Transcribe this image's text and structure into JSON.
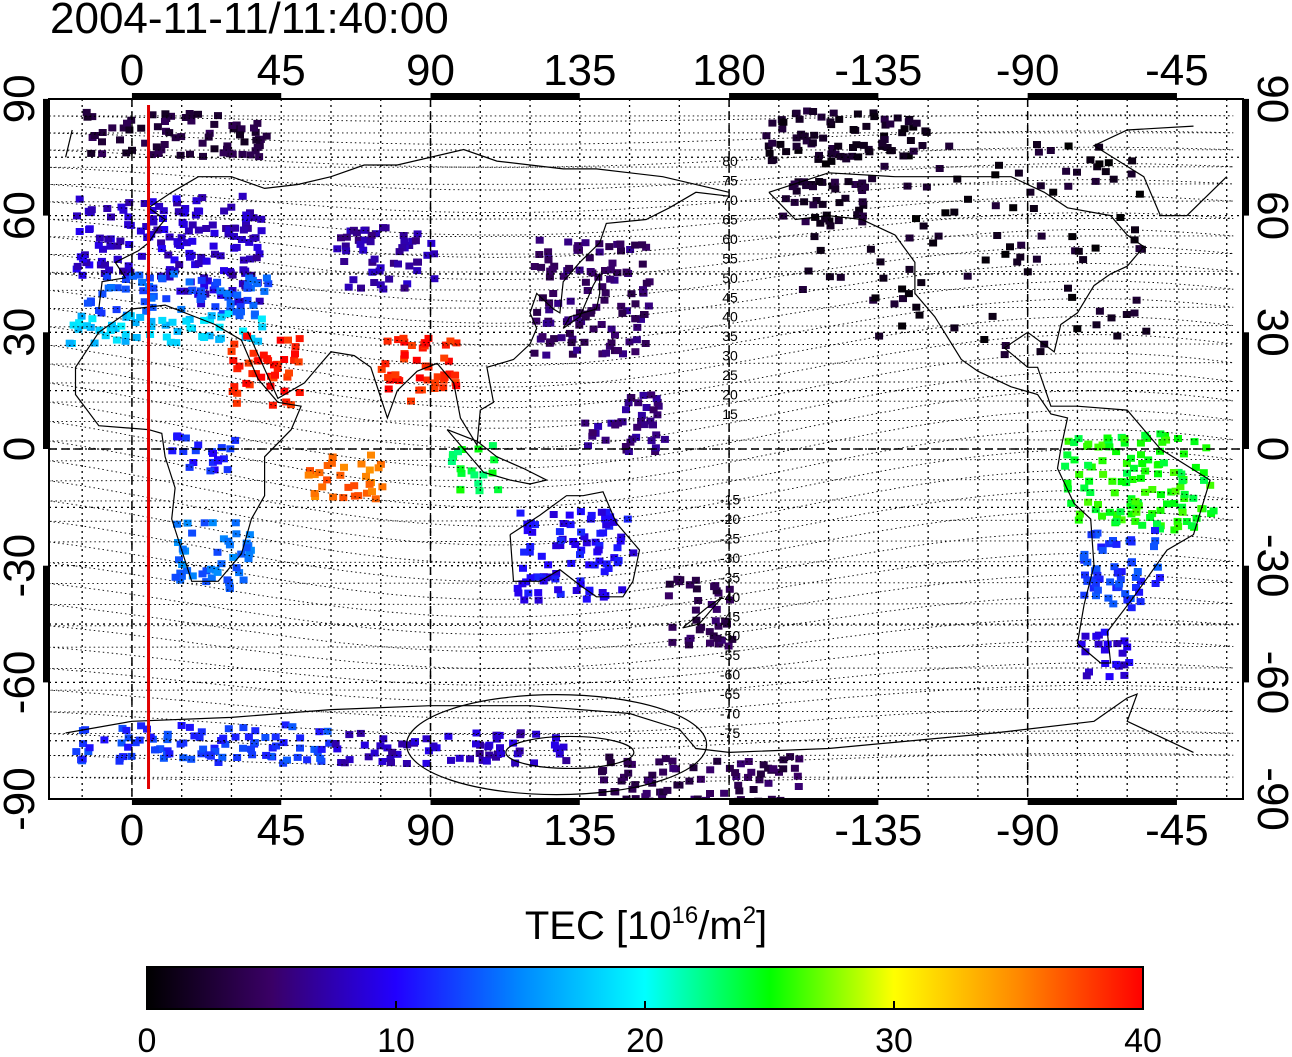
{
  "title": "2004-11-11/11:40:00",
  "map": {
    "top_lon_labels": [
      "0",
      "45",
      "90",
      "135",
      "180",
      "-135",
      "-90",
      "-45"
    ],
    "bottom_lon_labels": [
      "0",
      "45",
      "90",
      "135",
      "180",
      "-135",
      "-90",
      "-45"
    ],
    "lat_labels": [
      "90",
      "60",
      "30",
      "0",
      "-30",
      "-60",
      "-90"
    ],
    "marker_longitude": 5,
    "contour_labels_north": [
      "80",
      "75",
      "70",
      "65",
      "60",
      "55",
      "50",
      "45",
      "40",
      "35",
      "30",
      "25",
      "20",
      "15"
    ],
    "contour_labels_south": [
      "-15",
      "-20",
      "-25",
      "-30",
      "-35",
      "-40",
      "-45",
      "-50",
      "-55",
      "-60",
      "-65",
      "-70",
      "-75"
    ],
    "colors": {
      "marker": "#e00000",
      "grid": "#000000"
    }
  },
  "colorbar": {
    "title_main": "TEC  [10",
    "title_exp1": "16",
    "title_mid": "/m",
    "title_exp2": "2",
    "title_end": "]",
    "ticks": [
      "0",
      "10",
      "20",
      "30",
      "40"
    ],
    "min": 0,
    "max": 40,
    "stops": [
      "#000000",
      "#3a0066",
      "#2200ff",
      "#0088ff",
      "#00ffff",
      "#00ff00",
      "#ffff00",
      "#ff8800",
      "#ff0000"
    ]
  },
  "tec_regions": [
    {
      "lon0": 10,
      "lon1": 38,
      "lat0": 38,
      "lat1": 66,
      "tec": 8
    },
    {
      "lon0": -18,
      "lon1": 15,
      "lat0": 45,
      "lat1": 66,
      "tec": 8.5
    },
    {
      "lon0": -15,
      "lon1": 40,
      "lat0": 35,
      "lat1": 46,
      "tec": 13
    },
    {
      "lon0": -20,
      "lon1": 42,
      "lat0": 28,
      "lat1": 36,
      "tec": 18
    },
    {
      "lon0": 28,
      "lon1": 50,
      "lat0": 12,
      "lat1": 30,
      "tec": 39
    },
    {
      "lon0": 74,
      "lon1": 98,
      "lat0": 12,
      "lat1": 30,
      "tec": 39
    },
    {
      "lon0": 52,
      "lon1": 75,
      "lat0": -12,
      "lat1": 0,
      "tec": 36
    },
    {
      "lon0": 95,
      "lon1": 110,
      "lat0": -10,
      "lat1": 2,
      "tec": 24
    },
    {
      "lon0": 60,
      "lon1": 90,
      "lat0": 42,
      "lat1": 58,
      "tec": 7
    },
    {
      "lon0": 120,
      "lon1": 155,
      "lat0": 25,
      "lat1": 55,
      "tec": 5
    },
    {
      "lon0": 135,
      "lon1": 160,
      "lat0": 0,
      "lat1": 15,
      "tec": 6
    },
    {
      "lon0": 115,
      "lon1": 150,
      "lat0": -38,
      "lat1": -15,
      "tec": 10
    },
    {
      "lon0": 160,
      "lon1": 180,
      "lat0": -50,
      "lat1": -32,
      "tec": 4
    },
    {
      "lon0": -165,
      "lon1": -55,
      "lat0": 25,
      "lat1": 80,
      "tec": 1.5
    },
    {
      "lon0": -165,
      "lon1": -140,
      "lat0": 58,
      "lat1": 70,
      "tec": 2.5
    },
    {
      "lon0": -80,
      "lon1": -35,
      "lat0": -20,
      "lat1": 5,
      "tec": 25
    },
    {
      "lon0": -75,
      "lon1": -50,
      "lat0": -40,
      "lat1": -20,
      "tec": 12
    },
    {
      "lon0": -75,
      "lon1": -60,
      "lat0": -58,
      "lat1": -45,
      "tec": 9
    },
    {
      "lon0": 10,
      "lon1": 35,
      "lat0": -35,
      "lat1": -18,
      "tec": 14
    },
    {
      "lon0": 10,
      "lon1": 30,
      "lat0": -5,
      "lat1": 5,
      "tec": 11
    },
    {
      "lon0": -20,
      "lon1": 60,
      "lat0": -80,
      "lat1": -70,
      "tec": 12
    },
    {
      "lon0": 60,
      "lon1": 130,
      "lat0": -80,
      "lat1": -72,
      "tec": 8
    },
    {
      "lon0": 140,
      "lon1": 200,
      "lat0": -90,
      "lat1": -78,
      "tec": 4
    },
    {
      "lon0": -170,
      "lon1": -120,
      "lat0": 75,
      "lat1": 88,
      "tec": 2
    },
    {
      "lon0": -15,
      "lon1": 40,
      "lat0": 76,
      "lat1": 88,
      "tec": 3
    }
  ]
}
